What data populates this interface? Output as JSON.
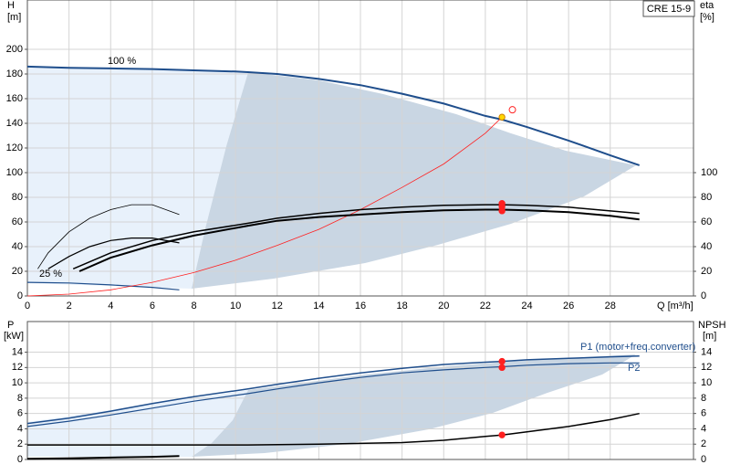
{
  "chart_data": [
    {
      "type": "line",
      "title": "CRE 15-9",
      "y_label": "H",
      "y_unit": "[m]",
      "y2_label": "eta",
      "y2_unit": "[%]",
      "x_label": "Q [m³/h]",
      "annotations": [
        "100 %",
        "25 %"
      ],
      "xlim": [
        0,
        32
      ],
      "ylim": [
        0,
        240
      ],
      "y2lim": [
        0,
        240
      ],
      "grid": true,
      "xticks": [
        0,
        2,
        4,
        6,
        8,
        10,
        12,
        14,
        16,
        18,
        20,
        22,
        24,
        26,
        28
      ],
      "yticks": [
        0,
        20,
        40,
        60,
        80,
        100,
        120,
        140,
        160,
        180,
        200
      ],
      "y2ticks": [
        0,
        20,
        40,
        60,
        80,
        100
      ],
      "series": [
        {
          "color": "#1f4e8c",
          "width": 2,
          "x": [
            0,
            2,
            4,
            6,
            8,
            10,
            10.6,
            12,
            14,
            16,
            18,
            20,
            22,
            22.8,
            24,
            26,
            28,
            29.4
          ],
          "values": [
            186,
            185,
            184.5,
            184,
            183,
            182,
            181.5,
            180,
            176,
            171,
            164,
            156,
            146,
            143,
            137,
            126,
            114,
            106
          ]
        },
        {
          "color": "#1f4e8c",
          "width": 1.2,
          "x": [
            0,
            2,
            4,
            6,
            7.3
          ],
          "values": [
            11,
            10.5,
            9,
            7,
            5
          ]
        },
        {
          "color": "#ff2020",
          "width": 0.8,
          "x": [
            0,
            2,
            4,
            6,
            8,
            10,
            12,
            14,
            16,
            18,
            20,
            22,
            22.8
          ],
          "values": [
            0,
            1.5,
            5,
            11,
            19,
            29,
            41,
            54,
            70,
            88,
            107,
            132,
            145
          ]
        },
        {
          "color": "#000000",
          "width": 1.5,
          "axis": "y2",
          "x": [
            2.2,
            4,
            6,
            8,
            10.6,
            12,
            14,
            16,
            18,
            20,
            22,
            22.8,
            24,
            26,
            28,
            29.4
          ],
          "values": [
            22,
            35,
            45,
            52,
            59,
            63,
            67,
            70,
            72,
            73.5,
            74,
            74,
            73.5,
            72,
            69,
            67
          ]
        },
        {
          "color": "#000000",
          "width": 2,
          "axis": "y2",
          "x": [
            2.5,
            4,
            6,
            8,
            10.6,
            12,
            14,
            16,
            18,
            20,
            22,
            22.8,
            24,
            26,
            28,
            29.4
          ],
          "values": [
            20,
            31,
            41,
            49,
            57,
            61,
            64,
            66,
            68,
            69.5,
            70,
            70,
            69.5,
            68,
            65,
            62
          ]
        },
        {
          "color": "#000000",
          "width": 0.8,
          "axis": "y2",
          "x": [
            0.5,
            1,
            2,
            3,
            4,
            5,
            6,
            7.3
          ],
          "values": [
            22,
            35,
            52,
            63,
            70,
            74,
            74,
            66
          ]
        },
        {
          "color": "#000000",
          "width": 1.2,
          "axis": "y2",
          "x": [
            1,
            2,
            3,
            4,
            5,
            6,
            7.3
          ],
          "values": [
            22,
            32,
            40,
            45,
            47,
            47,
            43
          ]
        }
      ],
      "markers": [
        {
          "x": 22.8,
          "y": 145,
          "color": "#ffd700",
          "hollow": false
        },
        {
          "x": 23.3,
          "y": 151,
          "color": "#ff2020",
          "hollow": true
        },
        {
          "x": 22.8,
          "y": 75,
          "color": "#ff2020",
          "hollow": false,
          "axis": "y2"
        },
        {
          "x": 22.8,
          "y": 72.5,
          "color": "#ff2020",
          "hollow": false,
          "axis": "y2"
        },
        {
          "x": 22.8,
          "y": 69,
          "color": "#ff2020",
          "hollow": false,
          "axis": "y2"
        }
      ]
    },
    {
      "type": "line",
      "y_label": "P",
      "y_unit": "[kW]",
      "y2_label": "NPSH",
      "y2_unit": "[m]",
      "xlim": [
        0,
        32
      ],
      "ylim": [
        0,
        18
      ],
      "y2lim": [
        0,
        18
      ],
      "grid": true,
      "yticks": [
        0,
        2,
        4,
        6,
        8,
        10,
        12,
        14
      ],
      "y2ticks": [
        0,
        2,
        4,
        6,
        8,
        10,
        12,
        14
      ],
      "series": [
        {
          "name": "P1 (motor+freq.converter)",
          "color": "#1f4e8c",
          "width": 1.5,
          "x": [
            0,
            2,
            4,
            6,
            8,
            10.6,
            12,
            14,
            16,
            18,
            20,
            22,
            22.8,
            24,
            26,
            28,
            29.4
          ],
          "values": [
            4.7,
            5.4,
            6.3,
            7.3,
            8.2,
            9.2,
            9.8,
            10.6,
            11.3,
            11.9,
            12.4,
            12.7,
            12.8,
            13.0,
            13.2,
            13.4,
            13.5
          ]
        },
        {
          "name": "P2",
          "color": "#1f4e8c",
          "width": 1.2,
          "x": [
            0,
            2,
            4,
            6,
            8,
            10.6,
            12,
            14,
            16,
            18,
            20,
            22,
            22.8,
            24,
            26,
            28,
            29.4
          ],
          "values": [
            4.3,
            5.0,
            5.8,
            6.7,
            7.6,
            8.6,
            9.2,
            10.0,
            10.7,
            11.3,
            11.7,
            12.0,
            12.1,
            12.3,
            12.5,
            12.6,
            12.6
          ]
        },
        {
          "color": "#000000",
          "width": 1.5,
          "axis": "y2",
          "x": [
            0,
            10.6,
            14,
            18,
            20,
            22,
            22.8,
            24,
            26,
            28,
            29.4
          ],
          "values": [
            1.9,
            1.9,
            2.0,
            2.2,
            2.5,
            3.0,
            3.2,
            3.6,
            4.3,
            5.2,
            6.0
          ]
        },
        {
          "color": "#000000",
          "width": 2,
          "x": [
            0,
            2,
            4,
            6,
            7.3
          ],
          "values": [
            0.1,
            0.15,
            0.25,
            0.35,
            0.45
          ]
        }
      ],
      "markers": [
        {
          "x": 22.8,
          "y": 12.8,
          "color": "#ff2020",
          "hollow": false
        },
        {
          "x": 22.8,
          "y": 12.0,
          "color": "#ff2020",
          "hollow": false
        },
        {
          "x": 22.8,
          "y": 3.2,
          "color": "#ff2020",
          "hollow": false,
          "axis": "y2"
        }
      ]
    }
  ]
}
